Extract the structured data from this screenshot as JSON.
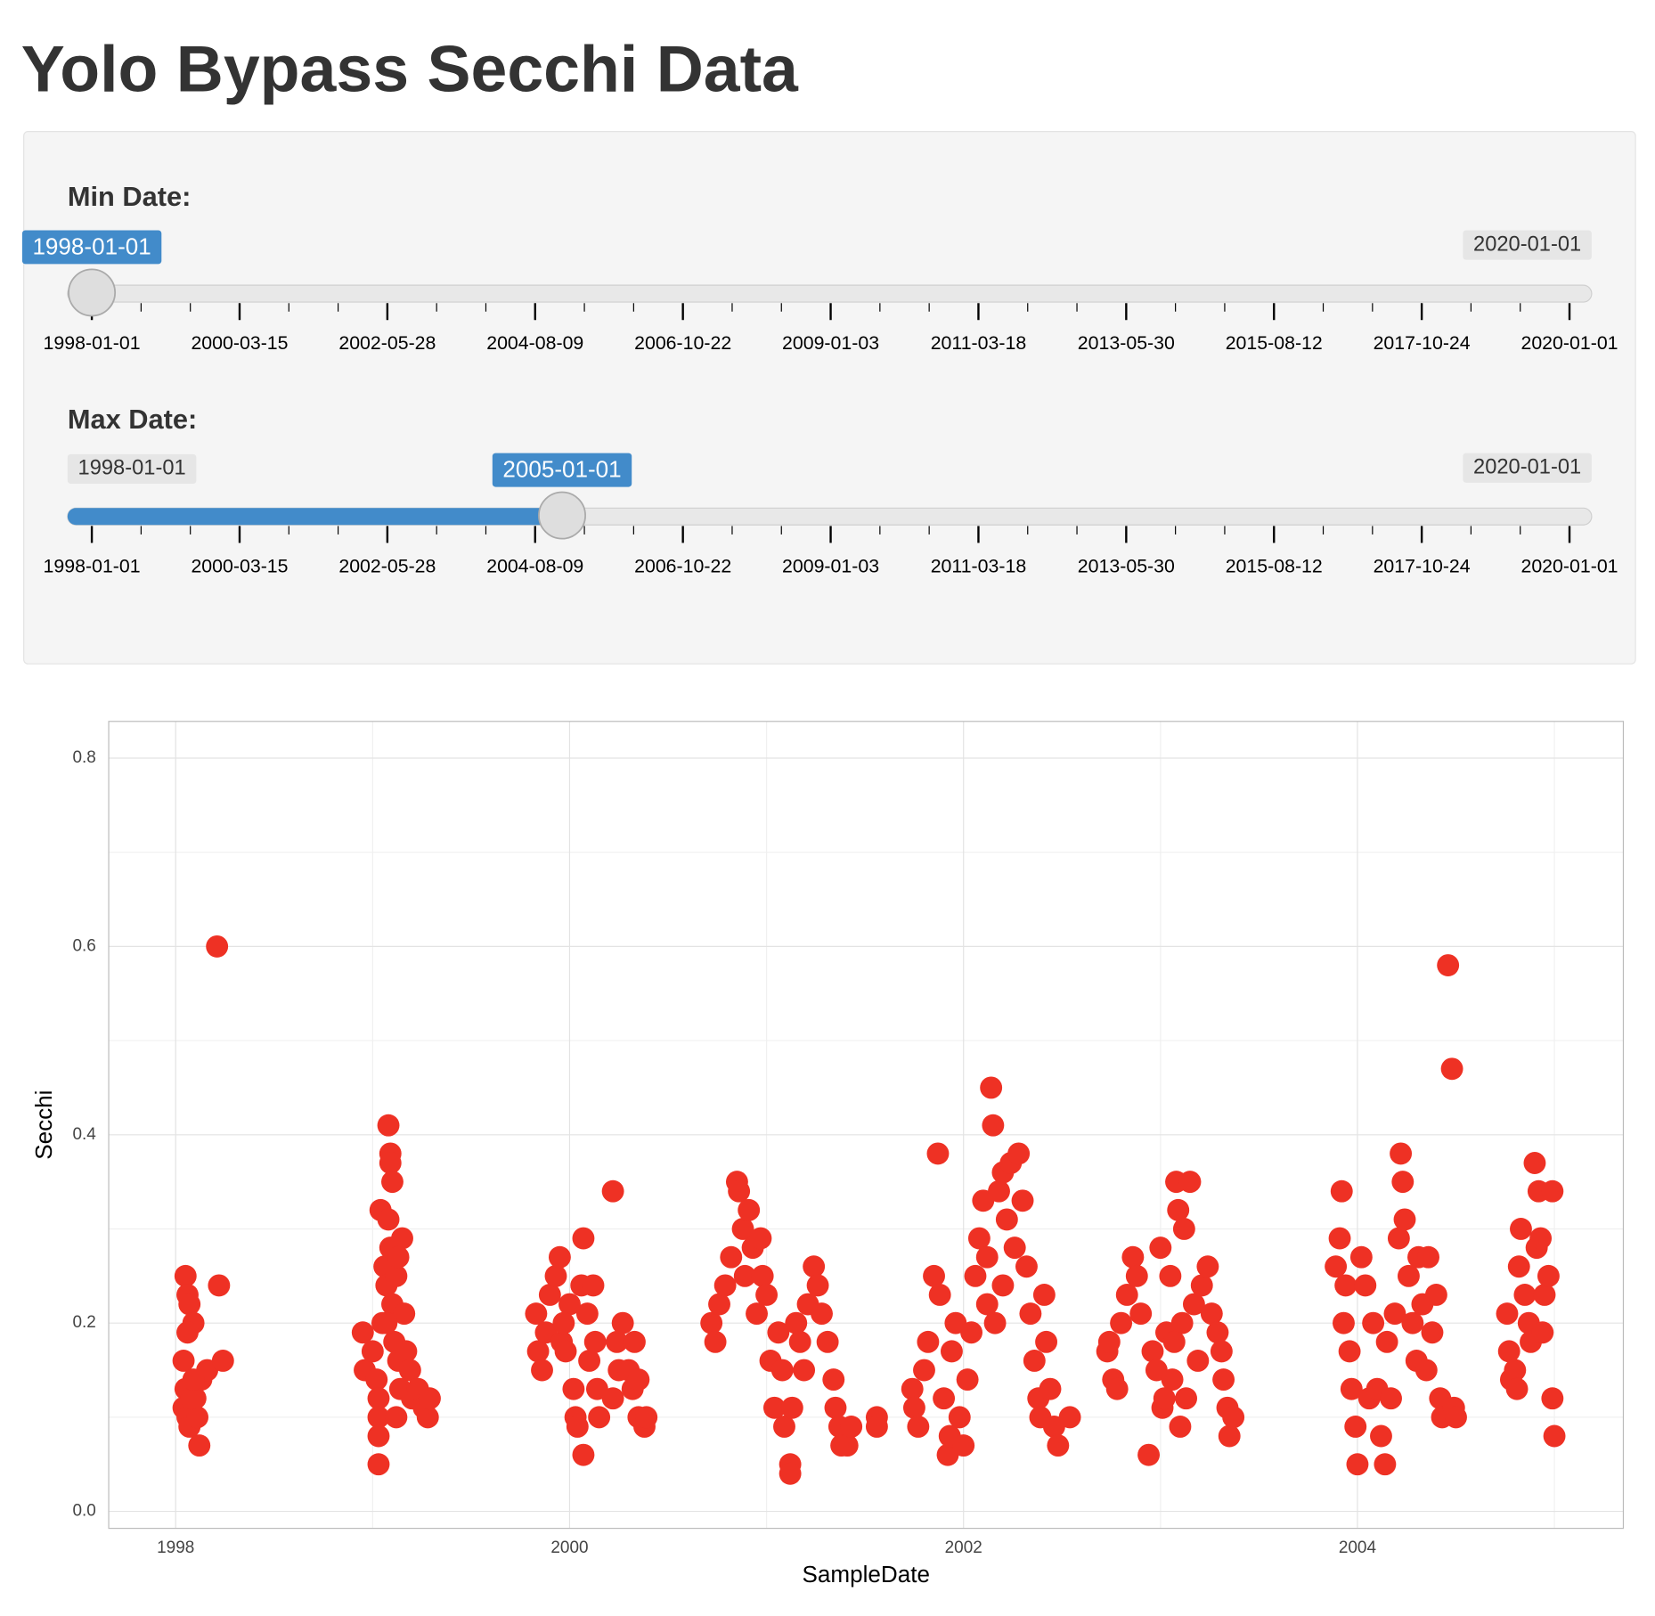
{
  "header": {
    "title": "Yolo Bypass Secchi Data"
  },
  "sliders": [
    {
      "label": "Min Date:",
      "value": "1998-01-01",
      "max": "2020-01-01",
      "ticks": [
        "1998-01-01",
        "2000-03-15",
        "2002-05-28",
        "2004-08-09",
        "2006-10-22",
        "2009-01-03",
        "2011-03-18",
        "2013-05-30",
        "2015-08-12",
        "2017-10-24",
        "2020-01-01"
      ]
    },
    {
      "label": "Max Date:",
      "min": "1998-01-01",
      "value": "2005-01-01",
      "max": "2020-01-01",
      "ticks": [
        "1998-01-01",
        "2000-03-15",
        "2002-05-28",
        "2004-08-09",
        "2006-10-22",
        "2009-01-03",
        "2011-03-18",
        "2013-05-30",
        "2015-08-12",
        "2017-10-24",
        "2020-01-01"
      ]
    }
  ],
  "chart_data": {
    "type": "scatter",
    "x_label": "SampleDate",
    "y_label": "Secchi",
    "color": "#ee3124",
    "grid": true,
    "xlim": [
      1997.66,
      2005.35
    ],
    "ylim": [
      -0.018,
      0.839
    ],
    "xticks": [
      1998,
      2000,
      2002,
      2004
    ],
    "minor_xticks": [
      1999,
      2001,
      2003,
      2005
    ],
    "yticks": [
      {
        "value": 0,
        "label": "0.0"
      },
      0.2,
      0.4,
      0.6,
      0.8
    ],
    "minor_yticks": [
      0.1,
      0.3,
      0.5,
      0.7
    ],
    "x": [
      1998.05,
      1998.06,
      1998.07,
      1998.09,
      1998.04,
      1998.05,
      1998.04,
      1998.06,
      1998.07,
      1998.1,
      1998.11,
      1998.12,
      1998.13,
      1998.16,
      1998.21,
      1998.22,
      1998.24,
      1998.08,
      1998.06,
      1998.09,
      1998.95,
      1998.96,
      1999.0,
      1999.02,
      1999.04,
      1999.05,
      1999.03,
      1999.03,
      1999.03,
      1999.03,
      1999.06,
      1999.08,
      1999.09,
      1999.09,
      1999.1,
      1999.08,
      1999.07,
      1999.09,
      1999.1,
      1999.11,
      1999.12,
      1999.13,
      1999.12,
      1999.14,
      1999.15,
      1999.16,
      1999.17,
      1999.19,
      1999.2,
      1999.23,
      1999.26,
      1999.28,
      1999.29,
      1999.07,
      1999.13,
      1999.83,
      1999.84,
      1999.86,
      1999.88,
      1999.9,
      1999.93,
      1999.95,
      1999.96,
      1999.98,
      2000.0,
      2000.02,
      2000.03,
      2000.04,
      2000.06,
      2000.07,
      2000.07,
      2000.09,
      2000.1,
      2000.12,
      2000.13,
      2000.14,
      2000.15,
      2000.22,
      2000.22,
      2000.24,
      2000.25,
      2000.27,
      2000.3,
      2000.32,
      2000.33,
      2000.35,
      2000.35,
      2000.38,
      2000.39,
      1999.97,
      2000.72,
      2000.74,
      2000.76,
      2000.79,
      2000.82,
      2000.85,
      2000.86,
      2000.88,
      2000.89,
      2000.91,
      2000.93,
      2000.95,
      2000.97,
      2000.98,
      2001.0,
      2001.02,
      2001.04,
      2001.06,
      2001.08,
      2001.09,
      2001.12,
      2001.12,
      2001.13,
      2001.15,
      2001.17,
      2001.19,
      2001.21,
      2001.24,
      2001.26,
      2001.28,
      2001.31,
      2001.34,
      2001.35,
      2001.37,
      2001.38,
      2001.41,
      2001.43,
      2001.56,
      2001.56,
      2001.74,
      2001.75,
      2001.77,
      2001.8,
      2001.82,
      2001.85,
      2001.87,
      2001.88,
      2001.9,
      2001.92,
      2001.93,
      2001.94,
      2001.96,
      2001.98,
      2002.0,
      2002.02,
      2002.04,
      2002.06,
      2002.08,
      2002.1,
      2002.12,
      2002.14,
      2002.15,
      2002.16,
      2002.18,
      2002.2,
      2002.22,
      2002.24,
      2002.26,
      2002.28,
      2002.3,
      2002.32,
      2002.34,
      2002.36,
      2002.38,
      2002.39,
      2002.41,
      2002.42,
      2002.44,
      2002.46,
      2002.48,
      2002.54,
      2002.12,
      2002.2,
      2002.73,
      2002.74,
      2002.76,
      2002.78,
      2002.8,
      2002.83,
      2002.86,
      2002.88,
      2002.9,
      2002.94,
      2002.96,
      2002.98,
      2003.0,
      2003.01,
      2003.03,
      2003.05,
      2003.06,
      2003.08,
      2003.09,
      2003.1,
      2003.11,
      2003.12,
      2003.13,
      2003.15,
      2003.17,
      2003.19,
      2003.21,
      2003.24,
      2003.26,
      2003.29,
      2003.31,
      2003.32,
      2003.34,
      2003.35,
      2003.37,
      2003.02,
      2003.07,
      2003.89,
      2003.91,
      2003.92,
      2003.93,
      2003.94,
      2003.96,
      2003.97,
      2003.99,
      2004.0,
      2004.02,
      2004.04,
      2004.06,
      2004.08,
      2004.1,
      2004.12,
      2004.14,
      2004.15,
      2004.17,
      2004.19,
      2004.21,
      2004.22,
      2004.23,
      2004.24,
      2004.26,
      2004.28,
      2004.3,
      2004.31,
      2004.33,
      2004.35,
      2004.38,
      2004.4,
      2004.42,
      2004.43,
      2004.46,
      2004.48,
      2004.49,
      2004.5,
      2004.36,
      2004.76,
      2004.77,
      2004.78,
      2004.8,
      2004.81,
      2004.82,
      2004.83,
      2004.85,
      2004.87,
      2004.88,
      2004.9,
      2004.91,
      2004.92,
      2004.94,
      2004.95,
      2004.97,
      2004.99,
      2004.99,
      2005.0,
      2004.93
    ],
    "values": [
      0.25,
      0.23,
      0.22,
      0.2,
      0.16,
      0.13,
      0.11,
      0.1,
      0.09,
      0.12,
      0.1,
      0.07,
      0.14,
      0.15,
      0.6,
      0.24,
      0.16,
      0.12,
      0.19,
      0.14,
      0.19,
      0.15,
      0.17,
      0.14,
      0.32,
      0.2,
      0.12,
      0.1,
      0.08,
      0.05,
      0.26,
      0.41,
      0.38,
      0.37,
      0.35,
      0.31,
      0.24,
      0.28,
      0.22,
      0.18,
      0.25,
      0.16,
      0.1,
      0.13,
      0.29,
      0.21,
      0.17,
      0.15,
      0.12,
      0.13,
      0.11,
      0.1,
      0.12,
      0.2,
      0.27,
      0.21,
      0.17,
      0.15,
      0.19,
      0.23,
      0.25,
      0.27,
      0.18,
      0.17,
      0.22,
      0.13,
      0.1,
      0.09,
      0.24,
      0.29,
      0.06,
      0.21,
      0.16,
      0.24,
      0.18,
      0.13,
      0.1,
      0.12,
      0.34,
      0.18,
      0.15,
      0.2,
      0.15,
      0.13,
      0.18,
      0.14,
      0.1,
      0.09,
      0.1,
      0.2,
      0.2,
      0.18,
      0.22,
      0.24,
      0.27,
      0.35,
      0.34,
      0.3,
      0.25,
      0.32,
      0.28,
      0.21,
      0.29,
      0.25,
      0.23,
      0.16,
      0.11,
      0.19,
      0.15,
      0.09,
      0.05,
      0.04,
      0.11,
      0.2,
      0.18,
      0.15,
      0.22,
      0.26,
      0.24,
      0.21,
      0.18,
      0.14,
      0.11,
      0.09,
      0.07,
      0.07,
      0.09,
      0.1,
      0.09,
      0.13,
      0.11,
      0.09,
      0.15,
      0.18,
      0.25,
      0.38,
      0.23,
      0.12,
      0.06,
      0.08,
      0.17,
      0.2,
      0.1,
      0.07,
      0.14,
      0.19,
      0.25,
      0.29,
      0.33,
      0.27,
      0.45,
      0.41,
      0.2,
      0.34,
      0.36,
      0.31,
      0.37,
      0.28,
      0.38,
      0.33,
      0.26,
      0.21,
      0.16,
      0.12,
      0.1,
      0.23,
      0.18,
      0.13,
      0.09,
      0.07,
      0.1,
      0.22,
      0.24,
      0.17,
      0.18,
      0.14,
      0.13,
      0.2,
      0.23,
      0.27,
      0.25,
      0.21,
      0.06,
      0.17,
      0.15,
      0.28,
      0.11,
      0.19,
      0.25,
      0.14,
      0.35,
      0.32,
      0.09,
      0.2,
      0.3,
      0.12,
      0.35,
      0.22,
      0.16,
      0.24,
      0.26,
      0.21,
      0.19,
      0.17,
      0.14,
      0.11,
      0.08,
      0.1,
      0.12,
      0.18,
      0.26,
      0.29,
      0.34,
      0.2,
      0.24,
      0.17,
      0.13,
      0.09,
      0.05,
      0.27,
      0.24,
      0.12,
      0.2,
      0.13,
      0.08,
      0.05,
      0.18,
      0.12,
      0.21,
      0.29,
      0.38,
      0.35,
      0.31,
      0.25,
      0.2,
      0.16,
      0.27,
      0.22,
      0.15,
      0.19,
      0.23,
      0.12,
      0.1,
      0.58,
      0.47,
      0.11,
      0.1,
      0.27,
      0.21,
      0.17,
      0.14,
      0.15,
      0.13,
      0.26,
      0.3,
      0.23,
      0.2,
      0.18,
      0.37,
      0.28,
      0.34,
      0.19,
      0.23,
      0.25,
      0.34,
      0.12,
      0.08,
      0.29
    ]
  }
}
